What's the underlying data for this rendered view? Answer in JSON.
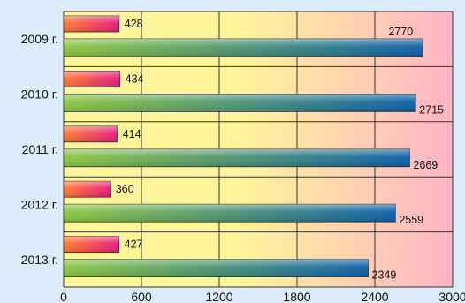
{
  "chart_data": {
    "type": "bar",
    "orientation": "horizontal",
    "categories": [
      "2009 г.",
      "2010 г.",
      "2011 г.",
      "2012 г.",
      "2013 г."
    ],
    "series": [
      {
        "values": [
          428,
          434,
          414,
          360,
          427
        ],
        "color_start": "#ff7a2e",
        "color_end": "#e8197e"
      },
      {
        "values": [
          2770,
          2715,
          2669,
          2559,
          2349
        ],
        "color_start": "#8cc63f",
        "color_end": "#0b5ea8"
      }
    ],
    "value_labels": [
      [
        "428",
        "434",
        "414",
        "360",
        "427"
      ],
      [
        "2770",
        "2715",
        "2669",
        "2559",
        "2349"
      ]
    ],
    "xlim": [
      0,
      3000
    ],
    "xticks": [
      0,
      600,
      1200,
      1800,
      2400,
      3000
    ],
    "xtick_labels": [
      "0",
      "600",
      "1200",
      "1800",
      "2400",
      "3000"
    ],
    "grid": true,
    "legend": "none"
  },
  "colors": {
    "page_background": "#dcecfb",
    "plot_background_left": "#fff59a",
    "plot_background_right": "#ffb3c7",
    "gridline": "#333333",
    "text": "#111111"
  }
}
